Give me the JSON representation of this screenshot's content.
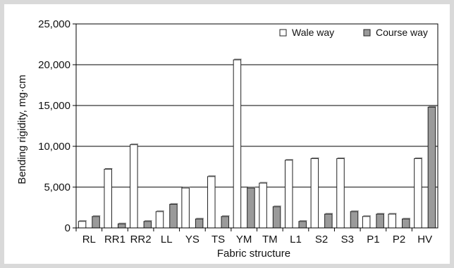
{
  "chart_data": {
    "type": "bar",
    "xlabel": "Fabric structure",
    "ylabel": "Bending rigidity, mg·cm",
    "ylim": [
      0,
      25000
    ],
    "yticks": [
      "0",
      "5,000",
      "10,000",
      "15,000",
      "20,000",
      "25,000"
    ],
    "ytick_values": [
      0,
      5000,
      10000,
      15000,
      20000,
      25000
    ],
    "grid": "horizontal",
    "legend_position": "top-right",
    "categories": [
      "RL",
      "RR1",
      "RR2",
      "LL",
      "YS",
      "TS",
      "YM",
      "TM",
      "L1",
      "S2",
      "S3",
      "P1",
      "P2",
      "HV"
    ],
    "series": [
      {
        "name": "Wale way",
        "color": "#ffffff",
        "values": [
          800,
          7200,
          10200,
          2000,
          4900,
          6300,
          20600,
          5500,
          8300,
          8500,
          8500,
          1400,
          1700,
          8500
        ]
      },
      {
        "name": "Course way",
        "color": "#9a9a9a",
        "values": [
          1400,
          500,
          800,
          2900,
          1100,
          1400,
          4900,
          2600,
          800,
          1700,
          2000,
          1700,
          1100,
          14800
        ]
      }
    ]
  }
}
